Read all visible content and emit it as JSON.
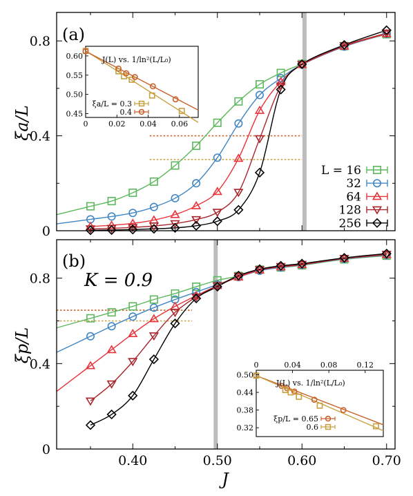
{
  "figure": {
    "xlabel": "J",
    "x_ticks": [
      "0.40",
      "0.50",
      "0.60",
      "0.70"
    ]
  },
  "colors": {
    "L16": "#5cb85c",
    "L32": "#3f86c4",
    "L64": "#e8333a",
    "L128": "#a8262c",
    "L256": "#000000",
    "inset_a": "#c8a040",
    "inset_b": "#c8622a",
    "crit_line": "#bdbdbd"
  },
  "chart_data": [
    {
      "type": "line",
      "panel_label": "(a)",
      "ylabel": "ξa/L",
      "xlim": [
        0.31,
        0.71
      ],
      "ylim": [
        0,
        0.92
      ],
      "y_ticks": [
        "0",
        "0.4",
        "0.8"
      ],
      "critical_x": 0.603,
      "x": [
        0.35,
        0.375,
        0.4,
        0.425,
        0.45,
        0.475,
        0.5,
        0.525,
        0.55,
        0.575,
        0.6,
        0.65,
        0.7
      ],
      "series": [
        {
          "name": "L = 16",
          "fit_start": 0.3,
          "values": [
            0.103,
            0.125,
            0.16,
            0.207,
            0.275,
            0.358,
            0.455,
            0.545,
            0.617,
            0.665,
            0.703,
            0.778,
            0.828
          ]
        },
        {
          "name": "32",
          "fit_start": 0.3,
          "values": [
            0.048,
            0.06,
            0.075,
            0.1,
            0.137,
            0.2,
            0.308,
            0.452,
            0.572,
            0.643,
            0.7,
            0.776,
            0.83
          ]
        },
        {
          "name": "64",
          "fit_start": 0.35,
          "values": [
            0.018,
            0.023,
            0.031,
            0.045,
            0.068,
            0.105,
            0.165,
            0.305,
            0.507,
            0.628,
            0.7,
            0.778,
            0.83
          ]
        },
        {
          "name": "128",
          "fit_start": 0.35,
          "values": [
            0.008,
            0.01,
            0.014,
            0.02,
            0.03,
            0.047,
            0.078,
            0.162,
            0.388,
            0.61,
            0.701,
            0.78,
            0.833
          ]
        },
        {
          "name": "256",
          "fit_start": 0.35,
          "values": [
            0.002,
            0.003,
            0.005,
            0.008,
            0.012,
            0.021,
            0.04,
            0.088,
            0.245,
            0.595,
            0.702,
            0.783,
            0.845
          ]
        }
      ],
      "legend_title": "",
      "legend_position": "bottom-right",
      "guide_lines": [
        {
          "value": 0.4,
          "x_range": [
            0.42,
            0.6
          ],
          "color": "inset_b"
        },
        {
          "value": 0.3,
          "x_range": [
            0.42,
            0.6
          ],
          "color": "inset_a"
        }
      ],
      "inset": {
        "title": "J(L) vs. 1/ln²(L/L₀)",
        "xlim": [
          0,
          0.072
        ],
        "ylim": [
          0.44,
          0.625
        ],
        "x_ticks": [
          "0",
          "0.02",
          "0.04",
          "0.06"
        ],
        "y_ticks": [
          "0.45",
          "0.50",
          "0.55",
          "0.60"
        ],
        "legend_label": "ξa/L",
        "series": [
          {
            "name": "= 0.3",
            "color": "inset_a",
            "x": [
              0,
              0.021,
              0.0245,
              0.0295,
              0.0425,
              0.0615
            ],
            "y": [
              0.613,
              0.56,
              0.547,
              0.538,
              0.497,
              0.457
            ],
            "fit": [
              [
                0,
                0.613
              ],
              [
                0.072,
                0.427
              ]
            ]
          },
          {
            "name": "0.4",
            "color": "inset_b",
            "x": [
              0,
              0.021,
              0.026,
              0.0315,
              0.043,
              0.0575
            ],
            "y": [
              0.612,
              0.567,
              0.555,
              0.545,
              0.521,
              0.487
            ],
            "fit": [
              [
                0,
                0.612
              ],
              [
                0.072,
                0.459
              ]
            ]
          }
        ]
      }
    },
    {
      "type": "line",
      "panel_label": "(b)",
      "annotation": "K = 0.9",
      "ylabel": "ξp/L",
      "xlim": [
        0.31,
        0.71
      ],
      "ylim": [
        0,
        0.98
      ],
      "y_ticks": [
        "0",
        "0.4",
        "0.8"
      ],
      "critical_x": 0.498,
      "x": [
        0.35,
        0.375,
        0.4,
        0.425,
        0.45,
        0.475,
        0.5,
        0.525,
        0.55,
        0.575,
        0.6,
        0.65,
        0.7
      ],
      "series": [
        {
          "name": "L = 16",
          "fit_start": 0.3,
          "values": [
            0.612,
            0.64,
            0.668,
            0.7,
            0.728,
            0.76,
            0.79,
            0.81,
            0.84,
            0.85,
            0.86,
            0.888,
            0.905
          ]
        },
        {
          "name": "32",
          "fit_start": 0.3,
          "values": [
            0.528,
            0.575,
            0.62,
            0.662,
            0.7,
            0.735,
            0.77,
            0.805,
            0.835,
            0.85,
            0.862,
            0.89,
            0.908
          ]
        },
        {
          "name": "64",
          "fit_start": 0.3,
          "values": [
            0.39,
            0.465,
            0.54,
            0.61,
            0.668,
            0.718,
            0.765,
            0.805,
            0.838,
            0.853,
            0.863,
            0.892,
            0.91
          ]
        },
        {
          "name": "128",
          "fit_start": 0.35,
          "values": [
            0.225,
            0.305,
            0.41,
            0.53,
            0.64,
            0.712,
            0.765,
            0.81,
            0.84,
            0.855,
            0.865,
            0.893,
            0.912
          ]
        },
        {
          "name": "256",
          "fit_start": 0.35,
          "values": [
            0.112,
            0.162,
            0.25,
            0.42,
            0.588,
            0.705,
            0.76,
            0.812,
            0.842,
            0.858,
            0.868,
            0.895,
            0.915
          ]
        }
      ],
      "guide_lines": [
        {
          "value": 0.65,
          "x_range": [
            0.31,
            0.47
          ],
          "color": "inset_b"
        },
        {
          "value": 0.6,
          "x_range": [
            0.31,
            0.47
          ],
          "color": "inset_a"
        }
      ],
      "inset": {
        "title": "J(L) vs. 1/ln²(L/L₀)",
        "xlim": [
          0,
          0.14
        ],
        "ylim": [
          0.29,
          0.515
        ],
        "x_ticks": [
          "0",
          "0.04",
          "0.08",
          "0.12"
        ],
        "y_ticks": [
          "0.32",
          "0.38",
          "0.44",
          "0.50"
        ],
        "legend_label": "ξp/L",
        "series": [
          {
            "name": "= 0.65",
            "color": "inset_b",
            "x": [
              0,
              0.028,
              0.034,
              0.042,
              0.064,
              0.096
            ],
            "y": [
              0.497,
              0.462,
              0.454,
              0.443,
              0.415,
              0.38
            ],
            "fit": [
              [
                0,
                0.497
              ],
              [
                0.14,
                0.33
              ]
            ]
          },
          {
            "name": "0.6",
            "color": "inset_a",
            "x": [
              0,
              0.032,
              0.038,
              0.047,
              0.07,
              0.132
            ],
            "y": [
              0.497,
              0.448,
              0.44,
              0.425,
              0.395,
              0.325
            ],
            "fit": [
              [
                0,
                0.497
              ],
              [
                0.14,
                0.31
              ]
            ]
          }
        ]
      }
    }
  ]
}
